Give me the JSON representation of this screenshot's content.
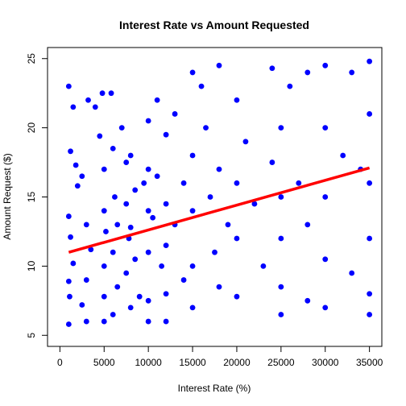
{
  "chart_data": {
    "type": "scatter",
    "title": "Interest Rate vs Amount Requested",
    "xlabel": "Interest Rate (%)",
    "ylabel": "Amount Request ($)",
    "xlim": [
      0,
      35000
    ],
    "ylim": [
      5,
      25
    ],
    "x_ticks": [
      0,
      5000,
      10000,
      15000,
      20000,
      25000,
      30000,
      35000
    ],
    "y_ticks": [
      5,
      10,
      15,
      20,
      25
    ],
    "grid": false,
    "point_color": "#0000ff",
    "trend_color": "#ff0000",
    "trend_line": {
      "x": [
        1000,
        35000
      ],
      "y": [
        11.0,
        17.1
      ]
    },
    "points": [
      [
        1000,
        23.0
      ],
      [
        1500,
        21.5
      ],
      [
        1200,
        18.3
      ],
      [
        1800,
        17.3
      ],
      [
        2000,
        15.8
      ],
      [
        1000,
        13.6
      ],
      [
        1200,
        12.1
      ],
      [
        1500,
        10.2
      ],
      [
        1000,
        8.9
      ],
      [
        1100,
        7.8
      ],
      [
        1000,
        5.8
      ],
      [
        2500,
        16.5
      ],
      [
        3000,
        13.0
      ],
      [
        3500,
        11.2
      ],
      [
        3000,
        9.0
      ],
      [
        2500,
        7.2
      ],
      [
        3000,
        6.0
      ],
      [
        3200,
        22.0
      ],
      [
        4000,
        21.5
      ],
      [
        4500,
        19.4
      ],
      [
        4800,
        22.5
      ],
      [
        5000,
        17.0
      ],
      [
        5000,
        14.0
      ],
      [
        5200,
        12.5
      ],
      [
        5000,
        10.0
      ],
      [
        5000,
        7.8
      ],
      [
        5000,
        6.0
      ],
      [
        5800,
        22.5
      ],
      [
        6000,
        18.5
      ],
      [
        6200,
        15.0
      ],
      [
        6500,
        13.0
      ],
      [
        6000,
        11.0
      ],
      [
        6500,
        8.5
      ],
      [
        6000,
        6.5
      ],
      [
        7000,
        20.0
      ],
      [
        7500,
        17.5
      ],
      [
        7500,
        14.5
      ],
      [
        7800,
        12.0
      ],
      [
        7500,
        9.5
      ],
      [
        8000,
        7.0
      ],
      [
        8000,
        18.0
      ],
      [
        8500,
        15.5
      ],
      [
        8000,
        12.8
      ],
      [
        8500,
        10.5
      ],
      [
        9000,
        7.8
      ],
      [
        9500,
        16.0
      ],
      [
        10000,
        20.5
      ],
      [
        10000,
        17.0
      ],
      [
        10000,
        14.0
      ],
      [
        10000,
        11.0
      ],
      [
        10000,
        7.5
      ],
      [
        10000,
        6.0
      ],
      [
        10500,
        13.5
      ],
      [
        11000,
        22.0
      ],
      [
        11000,
        16.5
      ],
      [
        11500,
        10.0
      ],
      [
        12000,
        19.5
      ],
      [
        12000,
        14.5
      ],
      [
        12000,
        11.5
      ],
      [
        12000,
        8.0
      ],
      [
        12000,
        6.0
      ],
      [
        13000,
        21.0
      ],
      [
        13000,
        13.0
      ],
      [
        14000,
        16.0
      ],
      [
        14000,
        9.0
      ],
      [
        15000,
        24.0
      ],
      [
        15000,
        18.0
      ],
      [
        15000,
        14.0
      ],
      [
        15000,
        10.0
      ],
      [
        15000,
        7.0
      ],
      [
        16000,
        23.0
      ],
      [
        16500,
        20.0
      ],
      [
        17000,
        15.0
      ],
      [
        17500,
        11.0
      ],
      [
        18000,
        24.5
      ],
      [
        18000,
        17.0
      ],
      [
        18000,
        8.5
      ],
      [
        19000,
        13.0
      ],
      [
        20000,
        22.0
      ],
      [
        20000,
        16.0
      ],
      [
        20000,
        12.0
      ],
      [
        20000,
        7.8
      ],
      [
        21000,
        19.0
      ],
      [
        22000,
        14.5
      ],
      [
        23000,
        10.0
      ],
      [
        24000,
        24.3
      ],
      [
        24000,
        17.5
      ],
      [
        25000,
        20.0
      ],
      [
        25000,
        15.0
      ],
      [
        25000,
        12.0
      ],
      [
        25000,
        8.5
      ],
      [
        25000,
        6.5
      ],
      [
        26000,
        23.0
      ],
      [
        27000,
        16.0
      ],
      [
        28000,
        24.0
      ],
      [
        28000,
        13.0
      ],
      [
        28000,
        7.5
      ],
      [
        30000,
        24.5
      ],
      [
        30000,
        20.0
      ],
      [
        30000,
        15.0
      ],
      [
        30000,
        10.5
      ],
      [
        30000,
        7.0
      ],
      [
        32000,
        18.0
      ],
      [
        33000,
        24.0
      ],
      [
        33000,
        9.5
      ],
      [
        34000,
        17.0
      ],
      [
        35000,
        24.8
      ],
      [
        35000,
        21.0
      ],
      [
        35000,
        16.0
      ],
      [
        35000,
        12.0
      ],
      [
        35000,
        8.0
      ],
      [
        35000,
        6.5
      ]
    ]
  }
}
